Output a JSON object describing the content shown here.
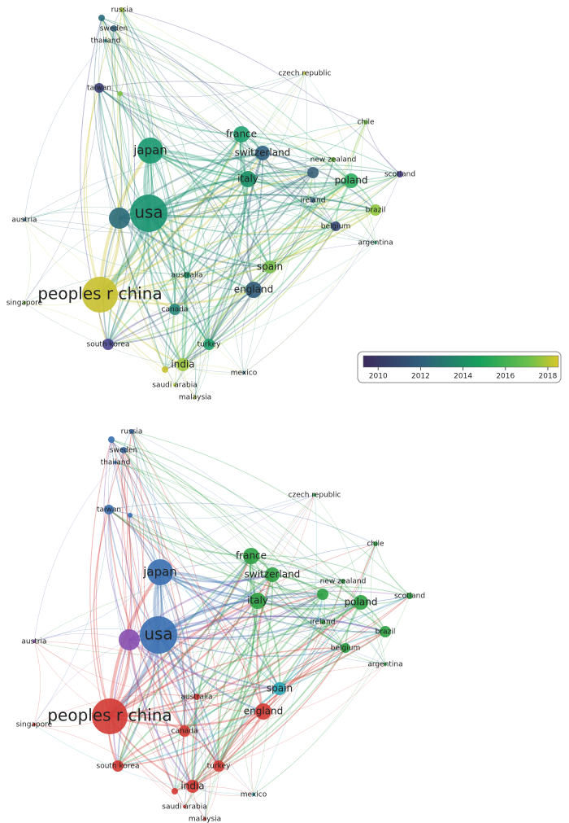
{
  "nodes": [
    "russia",
    "sweden",
    "thailand",
    "taiwan",
    "czech republic",
    "chile",
    "france",
    "japan",
    "switzerland",
    "new zealand",
    "scotland",
    "italy",
    "poland",
    "ireland",
    "usa",
    "austria",
    "brazil",
    "belgium",
    "argentina",
    "spain",
    "australia",
    "singapore",
    "peoples r china",
    "england",
    "canada",
    "south korea",
    "turkey",
    "india",
    "mexico",
    "saudi arabia",
    "malaysia"
  ],
  "colorbar": {
    "lim": [
      2009.3,
      2018.5
    ],
    "ticks": [
      2010,
      2012,
      2014,
      2016,
      2018
    ]
  }
}
